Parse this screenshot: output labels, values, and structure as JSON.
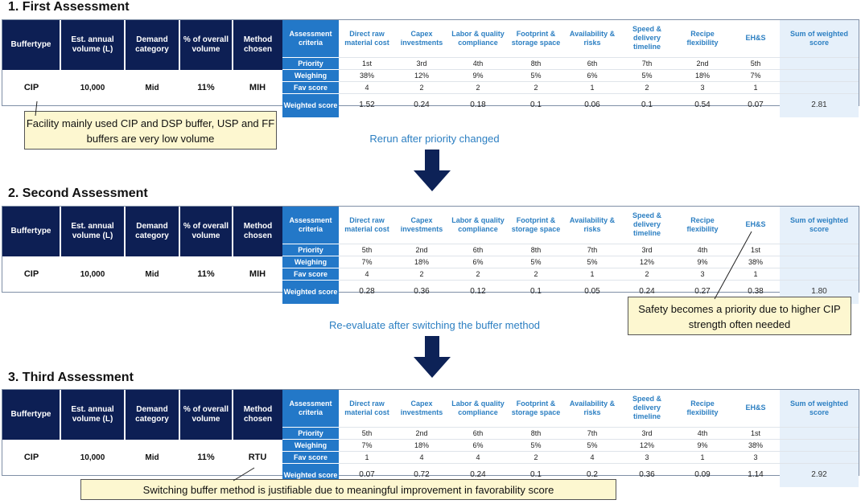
{
  "left_headers": [
    "Buffertype",
    "Est. annual volume (L)",
    "Demand category",
    "% of overall volume",
    "Method chosen"
  ],
  "right_headers": [
    "Assessment criteria",
    "Direct raw material cost",
    "Capex investments",
    "Labor & quality compliance",
    "Footprint & storage space",
    "Availability & risks",
    "Speed & delivery timeline",
    "Recipe flexibility",
    "EH&S",
    "Sum of weighted score"
  ],
  "row_labels": [
    "Priority",
    "Weighing",
    "Fav score",
    "Weighted score"
  ],
  "assessments": [
    {
      "title": "1. First Assessment",
      "buffer": "CIP",
      "volume": "10,000",
      "demand": "Mid",
      "percent": "11%",
      "method": "MIH",
      "priority": [
        "1st",
        "3rd",
        "4th",
        "8th",
        "6th",
        "7th",
        "2nd",
        "5th"
      ],
      "weighing": [
        "38%",
        "12%",
        "9%",
        "5%",
        "6%",
        "5%",
        "18%",
        "7%"
      ],
      "fav": [
        "4",
        "2",
        "2",
        "2",
        "1",
        "2",
        "3",
        "1"
      ],
      "weighted": [
        "1.52",
        "0.24",
        "0.18",
        "0.1",
        "0.06",
        "0.1",
        "0.54",
        "0.07"
      ],
      "sum": "2.81"
    },
    {
      "title": "2. Second Assessment",
      "buffer": "CIP",
      "volume": "10,000",
      "demand": "Mid",
      "percent": "11%",
      "method": "MIH",
      "priority": [
        "5th",
        "2nd",
        "6th",
        "8th",
        "7th",
        "3rd",
        "4th",
        "1st"
      ],
      "weighing": [
        "7%",
        "18%",
        "6%",
        "5%",
        "5%",
        "12%",
        "9%",
        "38%"
      ],
      "fav": [
        "4",
        "2",
        "2",
        "2",
        "1",
        "2",
        "3",
        "1"
      ],
      "weighted": [
        "0.28",
        "0.36",
        "0.12",
        "0.1",
        "0.05",
        "0.24",
        "0.27",
        "0.38"
      ],
      "sum": "1.80"
    },
    {
      "title": "3. Third Assessment",
      "buffer": "CIP",
      "volume": "10,000",
      "demand": "Mid",
      "percent": "11%",
      "method": "RTU",
      "priority": [
        "5th",
        "2nd",
        "6th",
        "8th",
        "7th",
        "3rd",
        "4th",
        "1st"
      ],
      "weighing": [
        "7%",
        "18%",
        "6%",
        "5%",
        "5%",
        "12%",
        "9%",
        "38%"
      ],
      "fav": [
        "1",
        "4",
        "4",
        "2",
        "4",
        "3",
        "1",
        "3"
      ],
      "weighted": [
        "0.07",
        "0.72",
        "0.24",
        "0.1",
        "0.2",
        "0.36",
        "0.09",
        "1.14"
      ],
      "sum": "2.92"
    }
  ],
  "callouts": {
    "c1": "Facility mainly used CIP and DSP buffer, USP and FF buffers are very low volume",
    "c2": "Safety becomes a priority due to higher CIP strength often needed",
    "c3": "Switching buffer method is justifiable due to meaningful improvement in favorability score"
  },
  "transitions": {
    "t1": "Rerun after priority changed",
    "t2": "Re-evaluate after switching the buffer method"
  },
  "colors": {
    "navy": "#0d1f54",
    "blue": "#2378c8",
    "text_blue": "#2c7fc2",
    "callout": "#fdf7d0",
    "arrow": "#0d2257"
  }
}
